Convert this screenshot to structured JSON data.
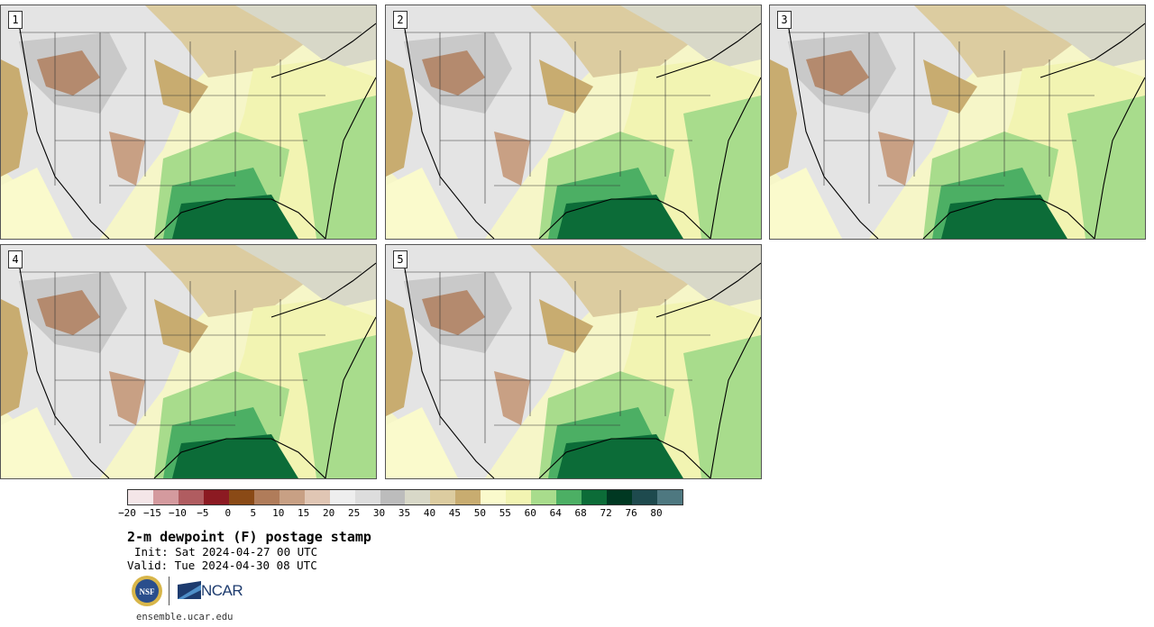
{
  "panels": [
    {
      "id": "p1",
      "label": "1"
    },
    {
      "id": "p2",
      "label": "2"
    },
    {
      "id": "p3",
      "label": "3"
    },
    {
      "id": "p4",
      "label": "4"
    },
    {
      "id": "p5",
      "label": "5"
    }
  ],
  "colorbar": {
    "colors": [
      "#f4e6e8",
      "#d49a9e",
      "#b05c60",
      "#8c1a22",
      "#8a4a16",
      "#b07c5a",
      "#c8a084",
      "#e0c6b4",
      "#eeeeee",
      "#dddddd",
      "#bcbcbc",
      "#d8d8c8",
      "#dccca0",
      "#c8ac70",
      "#fafacc",
      "#f2f4b2",
      "#a8dc8c",
      "#4caf64",
      "#0c6c38",
      "#003822",
      "#1e4a4e",
      "#4e7880"
    ],
    "ticks": [
      "−20",
      "−15",
      "−10",
      "−5",
      "0",
      "5",
      "10",
      "15",
      "20",
      "25",
      "30",
      "35",
      "40",
      "45",
      "50",
      "55",
      "60",
      "64",
      "68",
      "72",
      "76",
      "80"
    ]
  },
  "title": "2-m dewpoint (F) postage stamp",
  "init": "Init: Sat 2024-04-27 00 UTC",
  "valid": "Valid: Tue 2024-04-30 08 UTC",
  "logos": {
    "nsf": "NSF",
    "ncar": "NCAR"
  },
  "site": "ensemble.ucar.edu"
}
